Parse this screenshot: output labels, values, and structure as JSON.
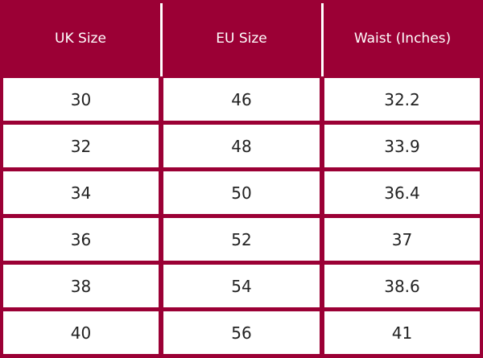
{
  "table": {
    "header": [
      "UK Size",
      "EU Size",
      "Waist (Inches)"
    ],
    "rows": [
      [
        30,
        46,
        32.2
      ],
      [
        32,
        48,
        33.9
      ],
      [
        34,
        50,
        36.4
      ],
      [
        36,
        52,
        37
      ],
      [
        38,
        54,
        38.6
      ],
      [
        40,
        56,
        41
      ]
    ]
  }
}
